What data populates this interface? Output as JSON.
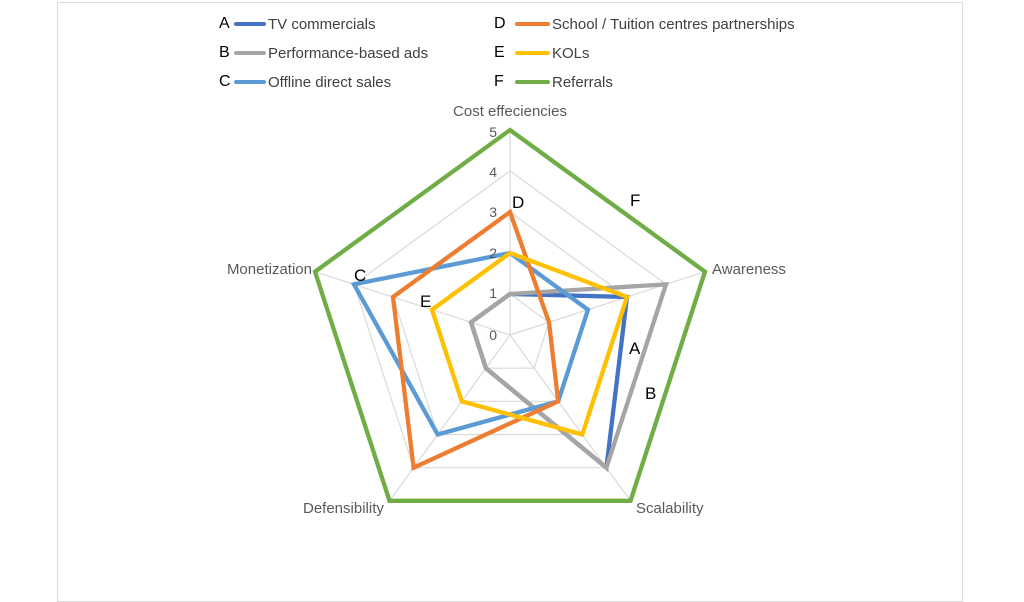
{
  "legend": {
    "items": [
      {
        "key": "A",
        "label": "TV commercials",
        "color": "#4472C4"
      },
      {
        "key": "B",
        "label": "Performance-based ads",
        "color": "#A5A5A5"
      },
      {
        "key": "C",
        "label": "Offline direct sales",
        "color": "#5B9BD5"
      },
      {
        "key": "D",
        "label": "School / Tuition centres partnerships",
        "color": "#ED7D31"
      },
      {
        "key": "E",
        "label": "KOLs",
        "color": "#FFC000"
      },
      {
        "key": "F",
        "label": "Referrals",
        "color": "#70AD47"
      }
    ]
  },
  "chart_data": {
    "type": "radar",
    "categories": [
      "Cost effeciencies",
      "Awareness",
      "Scalability",
      "Defensibility",
      "Monetization"
    ],
    "ticks": [
      "0",
      "1",
      "2",
      "3",
      "4",
      "5"
    ],
    "rmax": 5,
    "grid": true,
    "grid_color": "#D9D9D9",
    "legend_position": "top",
    "series": [
      {
        "key": "A",
        "name": "TV commercials",
        "color": "#4472C4",
        "values": [
          1,
          3,
          4,
          1,
          1
        ]
      },
      {
        "key": "B",
        "name": "Performance-based ads",
        "color": "#A5A5A5",
        "values": [
          1,
          4,
          4,
          1,
          1
        ]
      },
      {
        "key": "C",
        "name": "Offline direct sales",
        "color": "#5B9BD5",
        "values": [
          2,
          2,
          2,
          3,
          4
        ]
      },
      {
        "key": "D",
        "name": "School / Tuition centres partnerships",
        "color": "#ED7D31",
        "values": [
          3,
          1,
          2,
          4,
          3
        ]
      },
      {
        "key": "E",
        "name": "KOLs",
        "color": "#FFC000",
        "values": [
          2,
          3,
          3,
          2,
          2
        ]
      },
      {
        "key": "F",
        "name": "Referrals",
        "color": "#70AD47",
        "values": [
          5,
          5,
          5,
          5,
          5
        ]
      }
    ]
  }
}
